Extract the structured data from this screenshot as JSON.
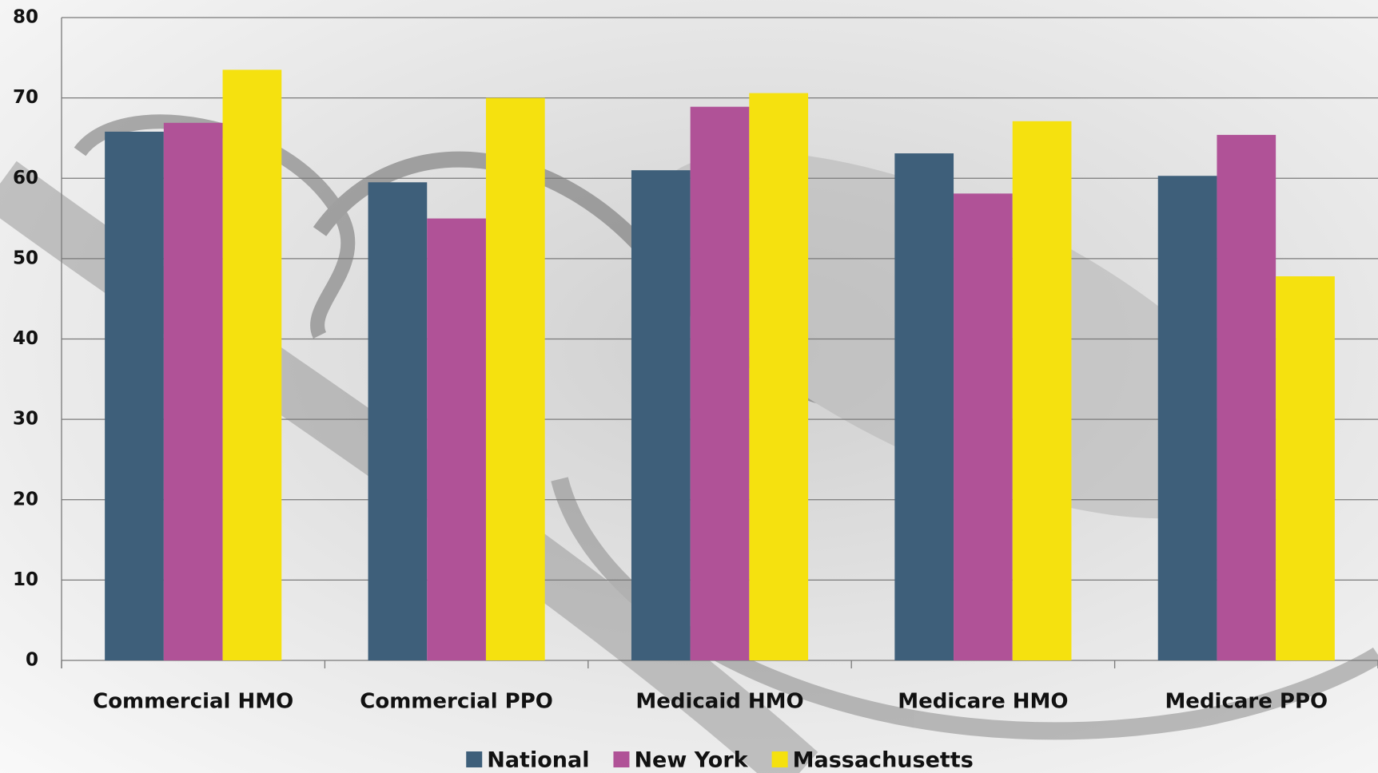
{
  "chart_data": {
    "type": "bar",
    "categories": [
      "Commercial HMO",
      "Commercial PPO",
      "Medicaid HMO",
      "Medicare HMO",
      "Medicare PPO"
    ],
    "series": [
      {
        "name": "National",
        "color": "#3e5f7a",
        "values": [
          65.8,
          59.5,
          61,
          63.1,
          60.3
        ]
      },
      {
        "name": "New York",
        "color": "#b05297",
        "values": [
          66.9,
          55,
          68.9,
          58.1,
          65.4
        ]
      },
      {
        "name": "Massachusetts",
        "color": "#f5e10f",
        "values": [
          73.5,
          70,
          70.6,
          67.1,
          47.8
        ]
      }
    ],
    "ylim": [
      0,
      80
    ],
    "yticks": [
      0,
      10,
      20,
      30,
      40,
      50,
      60,
      70,
      80
    ],
    "grid": true,
    "legend": "bottom"
  }
}
